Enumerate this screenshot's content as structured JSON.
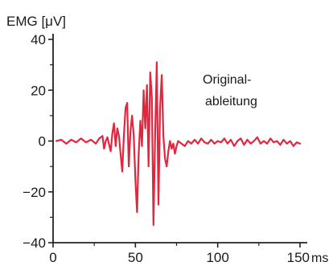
{
  "chart_data": {
    "type": "line",
    "ylabel": "EMG [μV]",
    "x_unit": "ms",
    "annotation": [
      "Original-",
      "ableitung"
    ],
    "xlim": [
      0,
      150
    ],
    "ylim": [
      -40,
      40
    ],
    "x_ticks": [
      0,
      50,
      100,
      150
    ],
    "y_ticks": [
      40,
      20,
      0,
      -20,
      -40
    ],
    "x_tick_labels": [
      "0",
      "50",
      "100",
      "150"
    ],
    "y_tick_labels": [
      "40",
      "20",
      "0",
      "−20",
      "−40"
    ],
    "grid": false,
    "line_color": "#e0273f",
    "series": [
      {
        "x": [
          2,
          5,
          8,
          11,
          14,
          17,
          20,
          23,
          26,
          28,
          30,
          31,
          32,
          33,
          35,
          36,
          37,
          38,
          39,
          40,
          41,
          42,
          43,
          44,
          45,
          46,
          47,
          48,
          49,
          50,
          51,
          52,
          53,
          54,
          55,
          56,
          57,
          58,
          59,
          60,
          61,
          62,
          63,
          64,
          65,
          66,
          67,
          68,
          69,
          70,
          71,
          72,
          73,
          74,
          75,
          76,
          78,
          80,
          82,
          84,
          86,
          88,
          90,
          92,
          94,
          96,
          98,
          100,
          102,
          104,
          106,
          108,
          110,
          112,
          114,
          116,
          118,
          120,
          122,
          124,
          126,
          128,
          130,
          132,
          134,
          136,
          138,
          140,
          142,
          144,
          146,
          148,
          150
        ],
        "y": [
          0,
          0.5,
          -1,
          0.5,
          -0.5,
          1,
          -0.5,
          0.5,
          -1,
          1,
          2,
          -3,
          0,
          1.5,
          -4,
          3,
          7,
          -2,
          5,
          2,
          -5,
          -12,
          2,
          13,
          15,
          -10,
          4,
          10,
          2,
          -15,
          -28,
          -5,
          8,
          -2,
          20,
          5,
          22,
          -10,
          27,
          17,
          -33,
          3,
          31,
          -25,
          13,
          26,
          2,
          -7,
          -10,
          -4,
          0,
          -3,
          -1,
          -5,
          -2,
          0,
          -1,
          -2,
          0,
          -1,
          0.5,
          -1,
          1,
          -0.5,
          -1,
          0.5,
          -1,
          0,
          -0.5,
          1,
          -1,
          0.5,
          -2,
          0,
          1,
          -1.5,
          0.5,
          -1,
          0,
          1.5,
          -1,
          0,
          -1,
          1,
          -0.5,
          0,
          -1.5,
          0.5,
          -1,
          0,
          -2,
          -0.5,
          -1
        ]
      }
    ]
  }
}
